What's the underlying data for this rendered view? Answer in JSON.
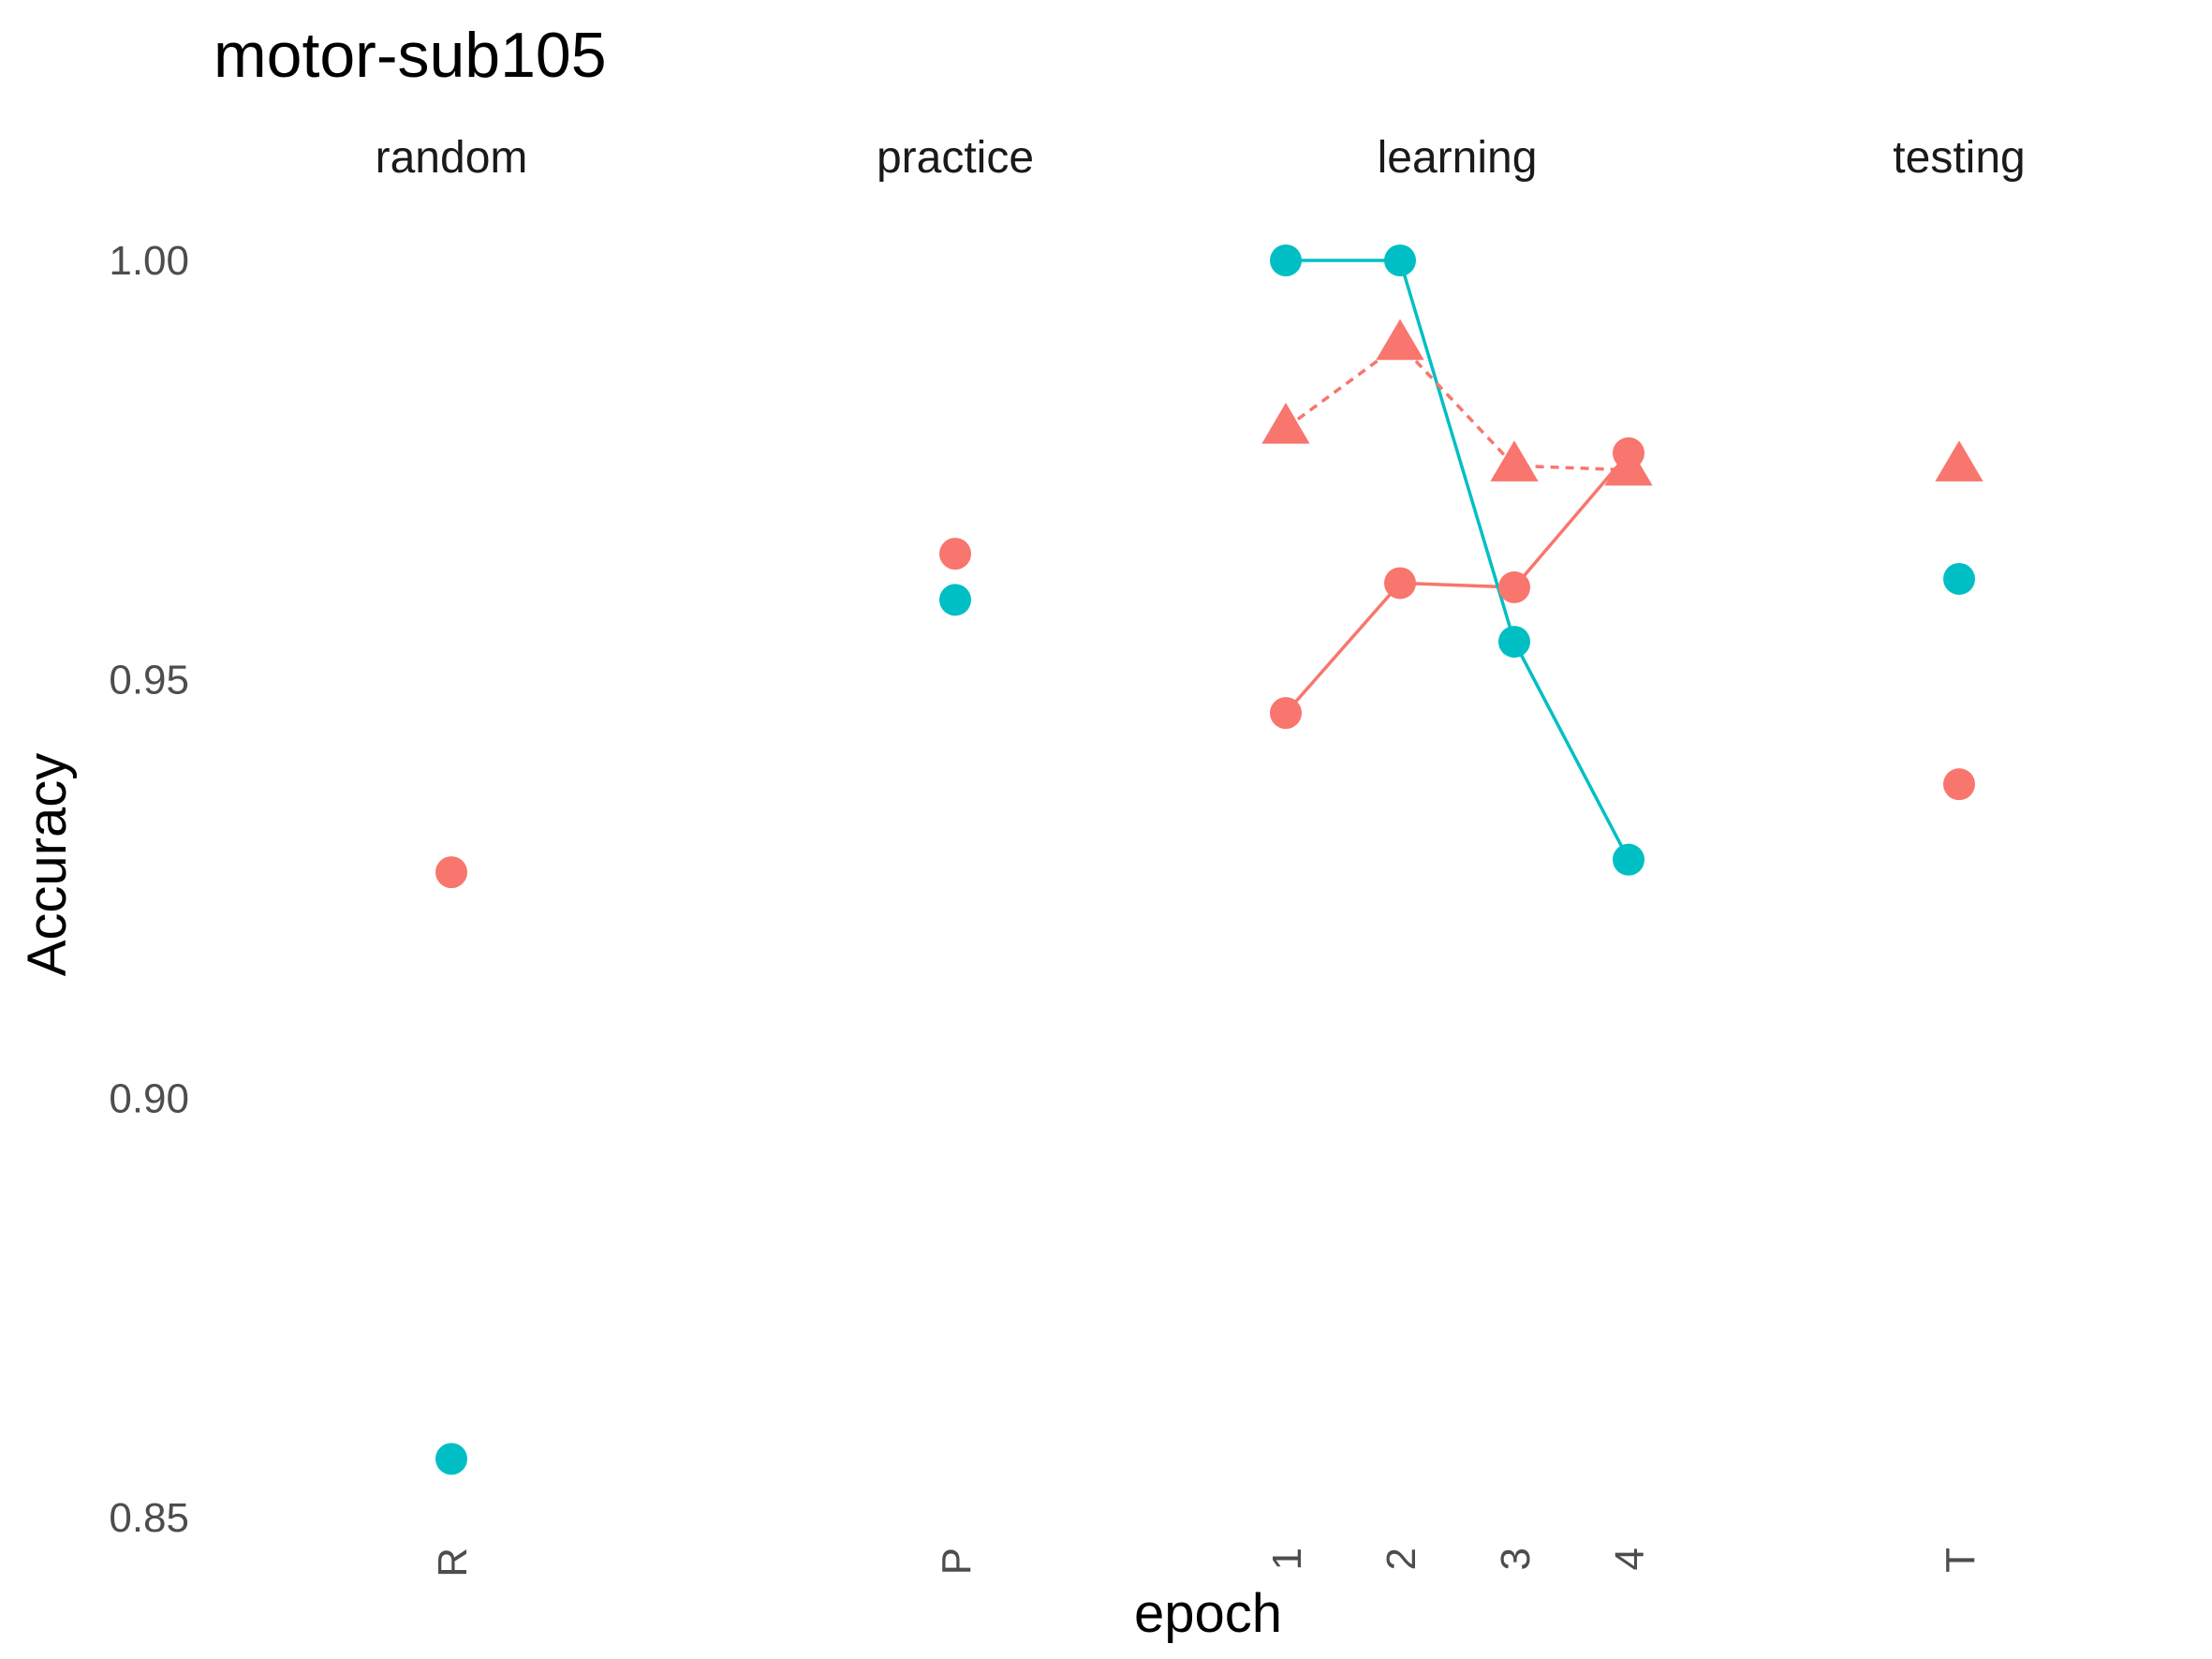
{
  "chart_data": {
    "type": "scatter",
    "title": "motor-sub105",
    "xlabel": "epoch",
    "ylabel": "Accuracy",
    "ylim": [
      0.85,
      1.0
    ],
    "yticks": [
      "0.85",
      "0.90",
      "0.95",
      "1.00"
    ],
    "grid": false,
    "legend": "none",
    "facets": [
      {
        "label": "random",
        "ticks": [
          "R"
        ]
      },
      {
        "label": "practice",
        "ticks": [
          "P"
        ]
      },
      {
        "label": "learning",
        "ticks": [
          "1",
          "2",
          "3",
          "4"
        ]
      },
      {
        "label": "testing",
        "ticks": [
          "T"
        ]
      }
    ],
    "series": [
      {
        "color": "#F8766D",
        "shape": "circle",
        "line": "solid",
        "points": [
          {
            "facet": "random",
            "x": "R",
            "y": 0.927
          },
          {
            "facet": "practice",
            "x": "P",
            "y": 0.965
          },
          {
            "facet": "learning",
            "x": "1",
            "y": 0.946
          },
          {
            "facet": "learning",
            "x": "2",
            "y": 0.9615
          },
          {
            "facet": "learning",
            "x": "3",
            "y": 0.961
          },
          {
            "facet": "learning",
            "x": "4",
            "y": 0.977
          },
          {
            "facet": "testing",
            "x": "T",
            "y": 0.9375
          }
        ]
      },
      {
        "color": "#00BFC4",
        "shape": "circle",
        "line": "solid",
        "points": [
          {
            "facet": "random",
            "x": "R",
            "y": 0.857
          },
          {
            "facet": "practice",
            "x": "P",
            "y": 0.9595
          },
          {
            "facet": "learning",
            "x": "1",
            "y": 1.0
          },
          {
            "facet": "learning",
            "x": "2",
            "y": 1.0
          },
          {
            "facet": "learning",
            "x": "3",
            "y": 0.9545
          },
          {
            "facet": "learning",
            "x": "4",
            "y": 0.9285
          },
          {
            "facet": "testing",
            "x": "T",
            "y": 0.962
          }
        ]
      },
      {
        "color": "#F8766D",
        "shape": "triangle",
        "line": "dashed",
        "points": [
          {
            "facet": "learning",
            "x": "1",
            "y": 0.98
          },
          {
            "facet": "learning",
            "x": "2",
            "y": 0.99
          },
          {
            "facet": "learning",
            "x": "3",
            "y": 0.9755
          },
          {
            "facet": "learning",
            "x": "4",
            "y": 0.975
          },
          {
            "facet": "testing",
            "x": "T",
            "y": 0.9755
          }
        ]
      }
    ]
  }
}
